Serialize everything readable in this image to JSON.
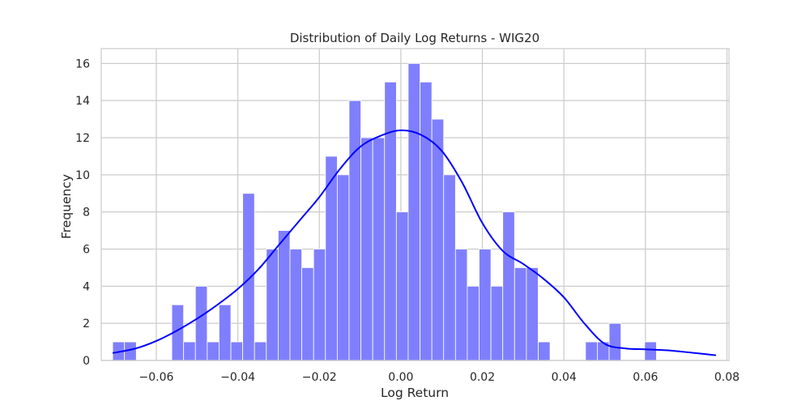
{
  "chart_data": {
    "type": "histogram",
    "title": "Distribution of Daily Log Returns - WIG20",
    "xlabel": "Log Return",
    "ylabel": "Frequency",
    "xlim": [
      -0.0735,
      0.0805
    ],
    "ylim": [
      0,
      16.8
    ],
    "xticks": [
      -0.06,
      -0.04,
      -0.02,
      0.0,
      0.02,
      0.04,
      0.06,
      0.08
    ],
    "xtick_labels": [
      "−0.06",
      "−0.04",
      "−0.02",
      "0.00",
      "0.02",
      "0.04",
      "0.06",
      "0.08"
    ],
    "yticks": [
      0,
      2,
      4,
      6,
      8,
      10,
      12,
      14,
      16
    ],
    "ytick_labels": [
      "0",
      "2",
      "4",
      "6",
      "8",
      "10",
      "12",
      "14",
      "16"
    ],
    "grid": true,
    "bin_start": -0.0707,
    "bin_width": 0.0029,
    "counts": [
      1,
      1,
      0,
      0,
      0,
      3,
      1,
      4,
      1,
      3,
      1,
      9,
      1,
      6,
      7,
      6,
      5,
      6,
      11,
      10,
      14,
      12,
      12,
      15,
      8,
      16,
      15,
      13,
      10,
      6,
      4,
      6,
      4,
      8,
      5,
      5,
      1,
      0,
      0,
      0,
      1,
      1,
      2,
      0,
      0,
      1
    ],
    "bar_color": "#7f7ffe",
    "kde": {
      "color": "#0000ff",
      "x": [
        -0.0707,
        -0.065,
        -0.06,
        -0.055,
        -0.05,
        -0.045,
        -0.04,
        -0.035,
        -0.03,
        -0.025,
        -0.02,
        -0.015,
        -0.01,
        -0.005,
        0.0,
        0.005,
        0.01,
        0.015,
        0.02,
        0.025,
        0.03,
        0.035,
        0.04,
        0.045,
        0.05,
        0.055,
        0.06,
        0.065,
        0.07,
        0.0773
      ],
      "y": [
        0.4,
        0.65,
        1.05,
        1.6,
        2.25,
        3.0,
        3.85,
        4.9,
        6.2,
        7.5,
        8.8,
        10.3,
        11.5,
        12.1,
        12.4,
        12.15,
        11.3,
        9.6,
        7.4,
        5.9,
        5.2,
        4.4,
        3.4,
        2.0,
        0.9,
        0.65,
        0.6,
        0.55,
        0.45,
        0.28
      ]
    }
  }
}
